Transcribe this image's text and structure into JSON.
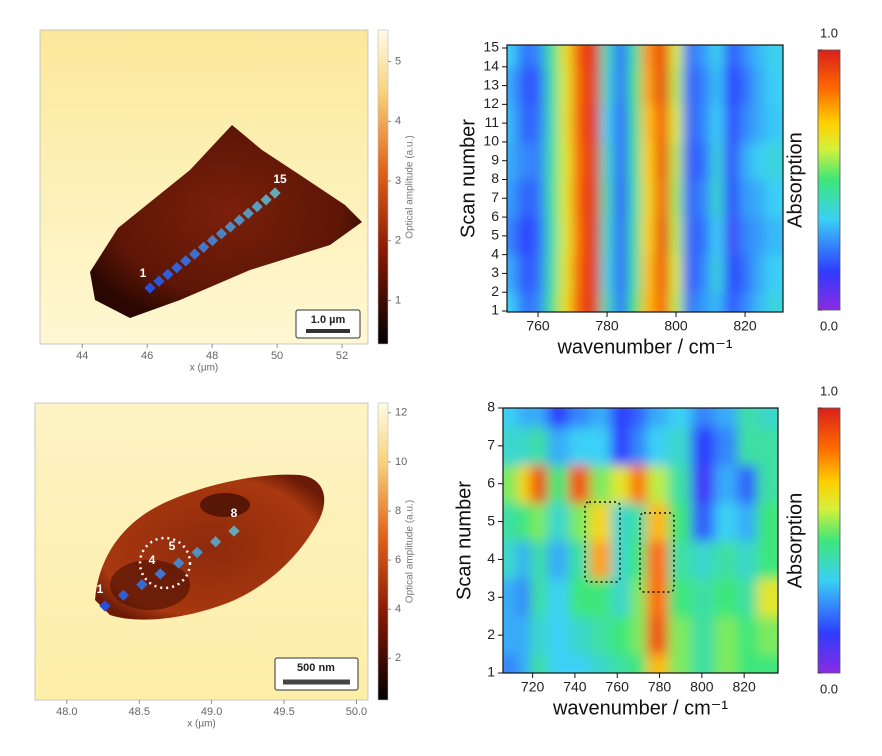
{
  "chart_data": [
    {
      "type": "image",
      "xlabel": "x (µm)",
      "xlim": [
        42.7,
        52.8
      ],
      "xticks": [
        44,
        46,
        48,
        50,
        52
      ],
      "colorbar_label": "Optical amplitude (a.u.)",
      "clim": [
        0.27,
        5.53
      ],
      "cticks": [
        1,
        2,
        3,
        4,
        5
      ],
      "point_labels": [
        1,
        15
      ],
      "scale_bar": "1.0 µm"
    },
    {
      "type": "heatmap",
      "xlabel": "wavenumber / cm⁻¹",
      "ylabel": "Scan number",
      "colorbar_label": "Absorption",
      "x": [
        752,
        756,
        760,
        764,
        768,
        772,
        776,
        780,
        784,
        788,
        792,
        796,
        800,
        804,
        808,
        812,
        816,
        820,
        824,
        828
      ],
      "y": [
        1,
        3,
        5,
        7,
        9,
        11,
        13,
        15
      ],
      "z": [
        [
          0.35,
          0.22,
          0.25,
          0.48,
          0.68,
          0.9,
          0.96,
          0.42,
          0.22,
          0.5,
          0.75,
          0.88,
          0.6,
          0.22,
          0.28,
          0.32,
          0.18,
          0.25,
          0.32,
          0.38
        ],
        [
          0.3,
          0.18,
          0.22,
          0.45,
          0.66,
          0.88,
          0.97,
          0.38,
          0.2,
          0.45,
          0.74,
          0.92,
          0.62,
          0.18,
          0.25,
          0.38,
          0.15,
          0.22,
          0.3,
          0.35
        ],
        [
          0.25,
          0.15,
          0.2,
          0.44,
          0.64,
          0.86,
          0.98,
          0.4,
          0.2,
          0.45,
          0.72,
          0.95,
          0.6,
          0.2,
          0.22,
          0.35,
          0.12,
          0.25,
          0.28,
          0.32
        ],
        [
          0.28,
          0.2,
          0.22,
          0.46,
          0.65,
          0.88,
          0.97,
          0.42,
          0.18,
          0.44,
          0.7,
          0.9,
          0.58,
          0.2,
          0.25,
          0.4,
          0.15,
          0.28,
          0.3,
          0.35
        ],
        [
          0.3,
          0.25,
          0.24,
          0.45,
          0.64,
          0.87,
          0.96,
          0.4,
          0.2,
          0.45,
          0.72,
          0.93,
          0.6,
          0.18,
          0.22,
          0.38,
          0.14,
          0.3,
          0.35,
          0.38
        ],
        [
          0.32,
          0.2,
          0.22,
          0.44,
          0.66,
          0.89,
          0.97,
          0.36,
          0.2,
          0.46,
          0.74,
          0.9,
          0.62,
          0.2,
          0.25,
          0.35,
          0.16,
          0.25,
          0.3,
          0.34
        ],
        [
          0.3,
          0.18,
          0.2,
          0.45,
          0.65,
          0.88,
          0.96,
          0.4,
          0.22,
          0.48,
          0.78,
          0.95,
          0.6,
          0.2,
          0.24,
          0.33,
          0.15,
          0.22,
          0.3,
          0.35
        ],
        [
          0.35,
          0.22,
          0.25,
          0.47,
          0.67,
          0.9,
          0.97,
          0.42,
          0.22,
          0.46,
          0.8,
          0.94,
          0.62,
          0.22,
          0.28,
          0.36,
          0.18,
          0.26,
          0.32,
          0.36
        ]
      ],
      "xlim": [
        751,
        831
      ],
      "xticks": [
        760,
        780,
        800,
        820
      ],
      "ylim": [
        1,
        15
      ],
      "yticks": [
        1,
        2,
        3,
        4,
        5,
        6,
        7,
        8,
        9,
        10,
        11,
        12,
        13,
        14,
        15
      ],
      "clim": [
        0,
        1
      ],
      "cticks": [
        {
          "value": 1,
          "label": "1.0"
        },
        {
          "value": 0,
          "label": "0.0"
        }
      ]
    },
    {
      "type": "image",
      "xlabel": "x (µm)",
      "xlim": [
        47.78,
        50.08
      ],
      "xticks": [
        {
          "value": 48,
          "label": "48.0"
        },
        {
          "value": 48.5,
          "label": "48.5"
        },
        {
          "value": 49,
          "label": "49.0"
        },
        {
          "value": 49.5,
          "label": "49.5"
        },
        {
          "value": 50,
          "label": "50.0"
        }
      ],
      "colorbar_label": "Optical amplitude (a.u.)",
      "clim": [
        0.3,
        12.4
      ],
      "cticks": [
        2,
        4,
        6,
        8,
        10,
        12
      ],
      "point_labels": [
        1,
        4,
        5,
        8
      ],
      "scale_bar": "500 nm"
    },
    {
      "type": "heatmap",
      "xlabel": "wavenumber / cm⁻¹",
      "ylabel": "Scan number",
      "colorbar_label": "Absorption",
      "x": [
        710,
        716,
        722,
        732,
        742,
        752,
        762,
        770,
        778,
        790,
        800,
        812,
        822,
        830
      ],
      "y": [
        1,
        2,
        3,
        4,
        5,
        6,
        7,
        8
      ],
      "z": [
        [
          0.25,
          0.3,
          0.45,
          0.35,
          0.35,
          0.4,
          0.45,
          0.5,
          0.75,
          0.55,
          0.45,
          0.55,
          0.5,
          0.5
        ],
        [
          0.3,
          0.3,
          0.4,
          0.35,
          0.4,
          0.45,
          0.5,
          0.55,
          0.9,
          0.55,
          0.45,
          0.55,
          0.5,
          0.55
        ],
        [
          0.3,
          0.25,
          0.45,
          0.35,
          0.5,
          0.5,
          0.4,
          0.55,
          0.85,
          0.5,
          0.45,
          0.5,
          0.45,
          0.65
        ],
        [
          0.4,
          0.3,
          0.45,
          0.3,
          0.45,
          0.78,
          0.4,
          0.5,
          0.85,
          0.45,
          0.4,
          0.45,
          0.4,
          0.5
        ],
        [
          0.45,
          0.5,
          0.55,
          0.4,
          0.55,
          0.7,
          0.4,
          0.45,
          0.75,
          0.5,
          0.2,
          0.35,
          0.3,
          0.5
        ],
        [
          0.55,
          0.7,
          0.92,
          0.5,
          0.9,
          0.55,
          0.65,
          0.85,
          0.6,
          0.45,
          0.12,
          0.3,
          0.2,
          0.45
        ],
        [
          0.4,
          0.4,
          0.45,
          0.3,
          0.35,
          0.35,
          0.15,
          0.25,
          0.35,
          0.4,
          0.15,
          0.25,
          0.45,
          0.45
        ],
        [
          0.35,
          0.3,
          0.3,
          0.15,
          0.25,
          0.3,
          0.15,
          0.2,
          0.3,
          0.35,
          0.25,
          0.3,
          0.45,
          0.4
        ]
      ],
      "xlim": [
        706,
        836
      ],
      "xticks": [
        720,
        740,
        760,
        780,
        800,
        820
      ],
      "ylim": [
        1,
        8
      ],
      "yticks": [
        1,
        2,
        3,
        4,
        5,
        6,
        7,
        8
      ],
      "clim": [
        0,
        1
      ],
      "cticks": [
        {
          "value": 1,
          "label": "1.0"
        },
        {
          "value": 0,
          "label": "0.0"
        }
      ]
    }
  ]
}
